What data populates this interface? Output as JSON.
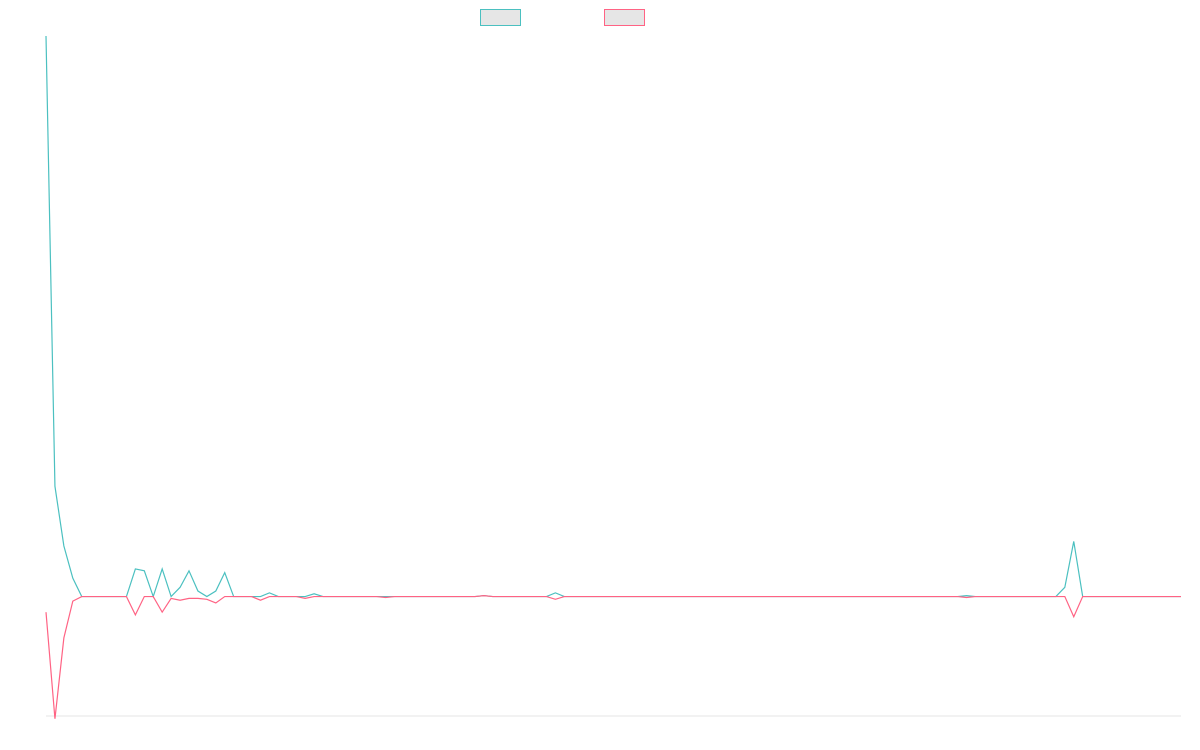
{
  "chart_data": {
    "type": "line",
    "title": "",
    "xlabel": "",
    "ylabel": "",
    "grid": false,
    "legend": "top-center",
    "ylim": [
      -13,
      61
    ],
    "series": [
      {
        "name": "",
        "color": "#4bc0c0",
        "values": [
          61,
          12,
          5.5,
          2,
          0,
          0,
          0,
          0,
          0,
          0,
          3,
          2.8,
          0,
          3,
          0,
          1,
          2.8,
          0.6,
          0,
          0.6,
          2.6,
          0,
          0,
          0,
          0,
          0.4,
          0,
          0,
          0,
          0,
          0.3,
          0,
          0,
          0,
          0,
          0,
          0,
          0,
          0,
          0,
          0,
          0,
          0,
          0,
          0,
          0,
          0,
          0,
          0,
          0.1,
          0,
          0,
          0,
          0,
          0,
          0,
          0,
          0.4,
          0,
          0,
          0,
          0,
          0,
          0,
          0,
          0,
          0,
          0,
          0,
          0,
          0,
          0,
          0,
          0,
          0,
          0,
          0,
          0,
          0,
          0,
          0,
          0,
          0,
          0,
          0,
          0,
          0,
          0,
          0,
          0,
          0,
          0,
          0,
          0,
          0,
          0,
          0,
          0,
          0,
          0,
          0,
          0,
          0,
          0.1,
          0,
          0,
          0,
          0,
          0,
          0,
          0,
          0,
          0,
          0,
          1,
          6,
          0,
          0,
          0,
          0,
          0,
          0,
          0,
          0,
          0,
          0,
          0,
          0
        ]
      },
      {
        "name": "",
        "color": "#ff6384",
        "values": [
          -1.7,
          -13.3,
          -4.5,
          -0.5,
          0,
          0,
          0,
          0,
          0,
          0,
          -2,
          0,
          0,
          -1.7,
          -0.2,
          -0.4,
          -0.2,
          -0.2,
          -0.3,
          -0.7,
          0,
          0,
          0,
          0,
          -0.4,
          0,
          0,
          0,
          0,
          -0.2,
          0,
          0,
          0,
          0,
          0,
          0,
          0,
          0,
          -0.1,
          0,
          0,
          0,
          0,
          0,
          0,
          0,
          0,
          0,
          0,
          0.1,
          0,
          0,
          0,
          0,
          0,
          0,
          0,
          -0.3,
          0,
          0,
          0,
          0,
          0,
          0,
          0,
          0,
          0,
          0,
          0,
          0,
          0,
          0,
          0,
          0,
          0,
          0,
          0,
          0,
          0,
          0,
          0,
          0,
          0,
          0,
          0,
          0,
          0,
          0,
          0,
          0,
          0,
          0,
          0,
          0,
          0,
          0,
          0,
          0,
          0,
          0,
          0,
          0,
          0,
          -0.1,
          0,
          0,
          0,
          0,
          0,
          0,
          0,
          0,
          0,
          0,
          0,
          -2.2,
          0,
          0,
          0,
          0,
          0,
          0,
          0,
          0,
          0,
          0,
          0,
          0
        ]
      }
    ]
  }
}
